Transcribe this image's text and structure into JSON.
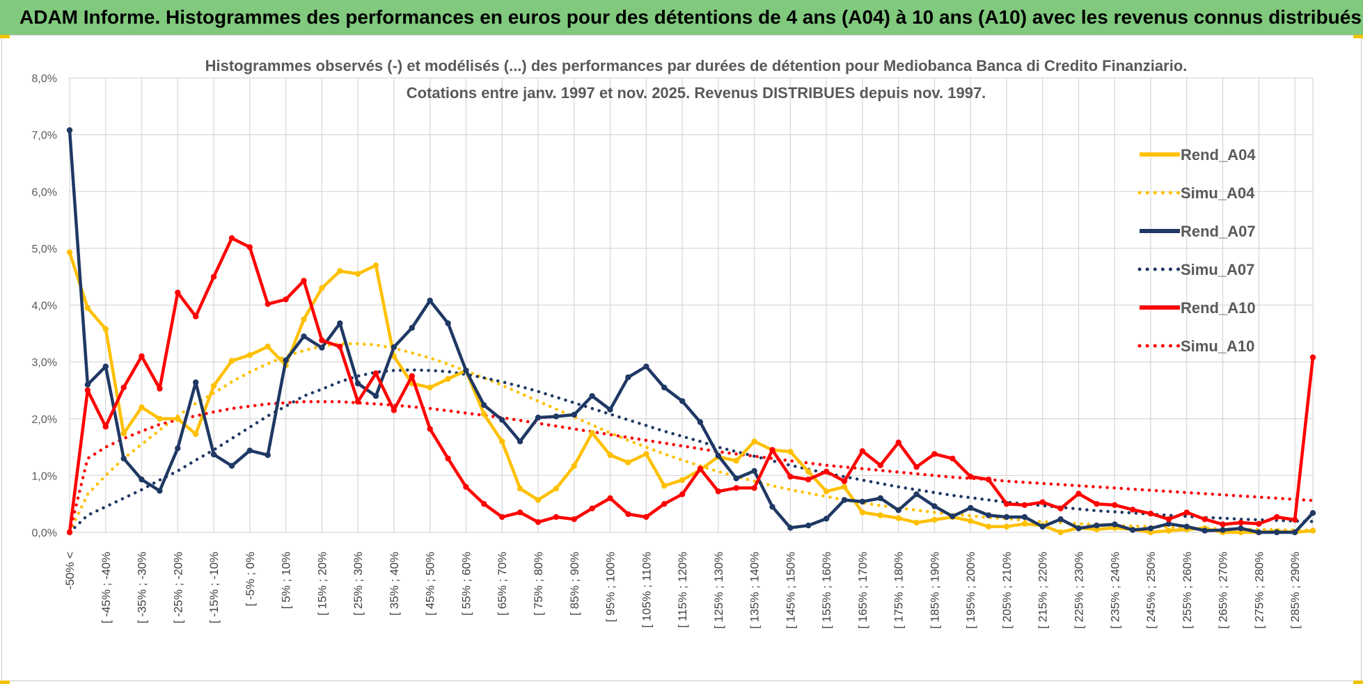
{
  "header": {
    "title": "ADAM Informe. Histogrammes des performances en euros pour des détentions de 4 ans (A04) à 10 ans (A10) avec les revenus connus distribués"
  },
  "colors": {
    "banner": "#80c97d",
    "a04": "#FFC000",
    "a07": "#1F3864",
    "a10": "#FF0000",
    "grid": "#d9d9d9"
  },
  "chart_data": {
    "type": "line",
    "title_line1": "Histogrammes observés (-) et modélisés (...) des performances par durées de détention pour Mediobanca Banca di Credito Finanziario.",
    "title_line2": "Cotations entre janv. 1997 et nov. 2025. Revenus DISTRIBUES depuis nov. 1997.",
    "xlabel": "",
    "ylabel": "",
    "ylim": [
      0,
      8
    ],
    "y_ticks": [
      "0,0%",
      "1,0%",
      "2,0%",
      "3,0%",
      "4,0%",
      "5,0%",
      "6,0%",
      "7,0%",
      "8,0%"
    ],
    "x_tick_labels": [
      "-50% <",
      "[ -45% ; -40%",
      "[ -35% ; -30%",
      "[ -25% ; -20%",
      "[ -15% ; -10%",
      "[ -5% ; 0%",
      "[ 5% ; 10%",
      "[ 15% ; 20%",
      "[ 25% ; 30%",
      "[ 35% ; 40%",
      "[ 45% ; 50%",
      "[ 55% ; 60%",
      "[ 65% ; 70%",
      "[ 75% ; 80%",
      "[ 85% ; 90%",
      "[ 95% ; 100%",
      "[ 105% ; 110%",
      "[ 115% ; 120%",
      "[ 125% ; 130%",
      "[ 135% ; 140%",
      "[ 145% ; 150%",
      "[ 155% ; 160%",
      "[ 165% ; 170%",
      "[ 175% ; 180%",
      "[ 185% ; 190%",
      "[ 195% ; 200%",
      "[ 205% ; 210%",
      "[ 215% ; 220%",
      "[ 225% ; 230%",
      "[ 235% ; 240%",
      "[ 245% ; 250%",
      "[ 255% ; 260%",
      "[ 265% ; 270%",
      "[ 275% ; 280%",
      "[ 285% ; 290%"
    ],
    "n_points": 70,
    "series": [
      {
        "name": "Rend_A04",
        "style": "solid",
        "color": "#FFC000",
        "values": [
          4.93,
          3.95,
          3.58,
          1.74,
          2.2,
          2.0,
          2.0,
          1.73,
          2.58,
          3.02,
          3.12,
          3.27,
          2.94,
          3.75,
          4.3,
          4.6,
          4.55,
          4.7,
          3.1,
          2.62,
          2.55,
          2.7,
          2.85,
          2.08,
          1.6,
          0.77,
          0.57,
          0.77,
          1.17,
          1.75,
          1.36,
          1.23,
          1.38,
          0.82,
          0.92,
          1.1,
          1.33,
          1.26,
          1.6,
          1.45,
          1.42,
          1.07,
          0.72,
          0.8,
          0.35,
          0.3,
          0.25,
          0.17,
          0.22,
          0.27,
          0.2,
          0.1,
          0.1,
          0.15,
          0.12,
          0.0,
          0.08,
          0.05,
          0.08,
          0.05,
          0.0,
          0.03,
          0.05,
          0.07,
          0.0,
          0.0,
          0.0,
          0.02,
          0.0,
          0.03
        ]
      },
      {
        "name": "Simu_A04",
        "style": "dotted",
        "color": "#FFC000",
        "values": [
          0.0,
          0.67,
          1.0,
          1.3,
          1.55,
          1.8,
          2.05,
          2.27,
          2.45,
          2.65,
          2.82,
          2.97,
          3.1,
          3.2,
          3.28,
          3.32,
          3.32,
          3.3,
          3.24,
          3.16,
          3.07,
          2.96,
          2.84,
          2.72,
          2.59,
          2.45,
          2.31,
          2.17,
          2.03,
          1.89,
          1.75,
          1.62,
          1.5,
          1.38,
          1.27,
          1.17,
          1.07,
          0.98,
          0.9,
          0.82,
          0.75,
          0.69,
          0.63,
          0.57,
          0.52,
          0.47,
          0.43,
          0.39,
          0.35,
          0.32,
          0.29,
          0.26,
          0.24,
          0.21,
          0.19,
          0.17,
          0.15,
          0.14,
          0.12,
          0.11,
          0.1,
          0.09,
          0.08,
          0.07,
          0.06,
          0.055,
          0.05,
          0.045,
          0.04,
          0.035
        ]
      },
      {
        "name": "Rend_A07",
        "style": "solid",
        "color": "#1F3864",
        "values": [
          7.08,
          2.6,
          2.92,
          1.3,
          0.93,
          0.73,
          1.48,
          2.64,
          1.37,
          1.17,
          1.44,
          1.36,
          3.03,
          3.45,
          3.25,
          3.68,
          2.62,
          2.4,
          3.26,
          3.6,
          4.08,
          3.68,
          2.85,
          2.24,
          1.98,
          1.6,
          2.02,
          2.04,
          2.07,
          2.4,
          2.16,
          2.73,
          2.92,
          2.55,
          2.31,
          1.94,
          1.35,
          0.95,
          1.08,
          0.45,
          0.08,
          0.12,
          0.24,
          0.57,
          0.54,
          0.6,
          0.39,
          0.67,
          0.46,
          0.28,
          0.43,
          0.3,
          0.27,
          0.27,
          0.1,
          0.23,
          0.07,
          0.12,
          0.14,
          0.04,
          0.07,
          0.15,
          0.1,
          0.03,
          0.04,
          0.07,
          0.0,
          0.0,
          0.0,
          0.34
        ]
      },
      {
        "name": "Simu_A07",
        "style": "dotted",
        "color": "#1F3864",
        "values": [
          0.0,
          0.3,
          0.45,
          0.6,
          0.75,
          0.92,
          1.08,
          1.27,
          1.45,
          1.65,
          1.85,
          2.05,
          2.22,
          2.4,
          2.52,
          2.65,
          2.75,
          2.82,
          2.85,
          2.86,
          2.85,
          2.83,
          2.78,
          2.72,
          2.65,
          2.57,
          2.48,
          2.38,
          2.28,
          2.18,
          2.08,
          1.98,
          1.88,
          1.78,
          1.69,
          1.6,
          1.5,
          1.42,
          1.34,
          1.26,
          1.18,
          1.11,
          1.04,
          0.98,
          0.92,
          0.86,
          0.8,
          0.75,
          0.7,
          0.65,
          0.61,
          0.57,
          0.53,
          0.5,
          0.47,
          0.44,
          0.41,
          0.38,
          0.36,
          0.34,
          0.32,
          0.3,
          0.28,
          0.26,
          0.25,
          0.23,
          0.22,
          0.21,
          0.2,
          0.19
        ]
      },
      {
        "name": "Rend_A10",
        "style": "solid",
        "color": "#FF0000",
        "values": [
          0.0,
          2.5,
          1.86,
          2.55,
          3.1,
          2.53,
          4.22,
          3.8,
          4.5,
          5.18,
          5.02,
          4.02,
          4.1,
          4.43,
          3.38,
          3.27,
          2.3,
          2.8,
          2.15,
          2.75,
          1.82,
          1.3,
          0.8,
          0.5,
          0.27,
          0.35,
          0.18,
          0.27,
          0.23,
          0.42,
          0.6,
          0.32,
          0.27,
          0.5,
          0.67,
          1.12,
          0.72,
          0.78,
          0.78,
          1.45,
          0.98,
          0.93,
          1.07,
          0.9,
          1.43,
          1.18,
          1.58,
          1.15,
          1.38,
          1.3,
          0.98,
          0.93,
          0.5,
          0.48,
          0.53,
          0.42,
          0.68,
          0.5,
          0.48,
          0.4,
          0.33,
          0.23,
          0.35,
          0.23,
          0.14,
          0.17,
          0.15,
          0.27,
          0.22,
          3.08
        ]
      },
      {
        "name": "Simu_A10",
        "style": "dotted",
        "color": "#FF0000",
        "values": [
          0.0,
          1.3,
          1.5,
          1.65,
          1.78,
          1.9,
          1.98,
          2.05,
          2.12,
          2.18,
          2.22,
          2.26,
          2.28,
          2.3,
          2.3,
          2.3,
          2.28,
          2.26,
          2.24,
          2.21,
          2.18,
          2.14,
          2.1,
          2.06,
          2.02,
          1.97,
          1.92,
          1.87,
          1.82,
          1.77,
          1.72,
          1.67,
          1.62,
          1.57,
          1.52,
          1.47,
          1.42,
          1.38,
          1.34,
          1.3,
          1.26,
          1.22,
          1.18,
          1.15,
          1.12,
          1.09,
          1.06,
          1.03,
          1.0,
          0.97,
          0.95,
          0.93,
          0.9,
          0.88,
          0.86,
          0.84,
          0.82,
          0.8,
          0.78,
          0.76,
          0.74,
          0.72,
          0.7,
          0.68,
          0.66,
          0.64,
          0.62,
          0.6,
          0.58,
          0.56
        ]
      }
    ],
    "legend": [
      "Rend_A04",
      "Simu_A04",
      "Rend_A07",
      "Simu_A07",
      "Rend_A10",
      "Simu_A10"
    ],
    "legend_position": "right"
  }
}
